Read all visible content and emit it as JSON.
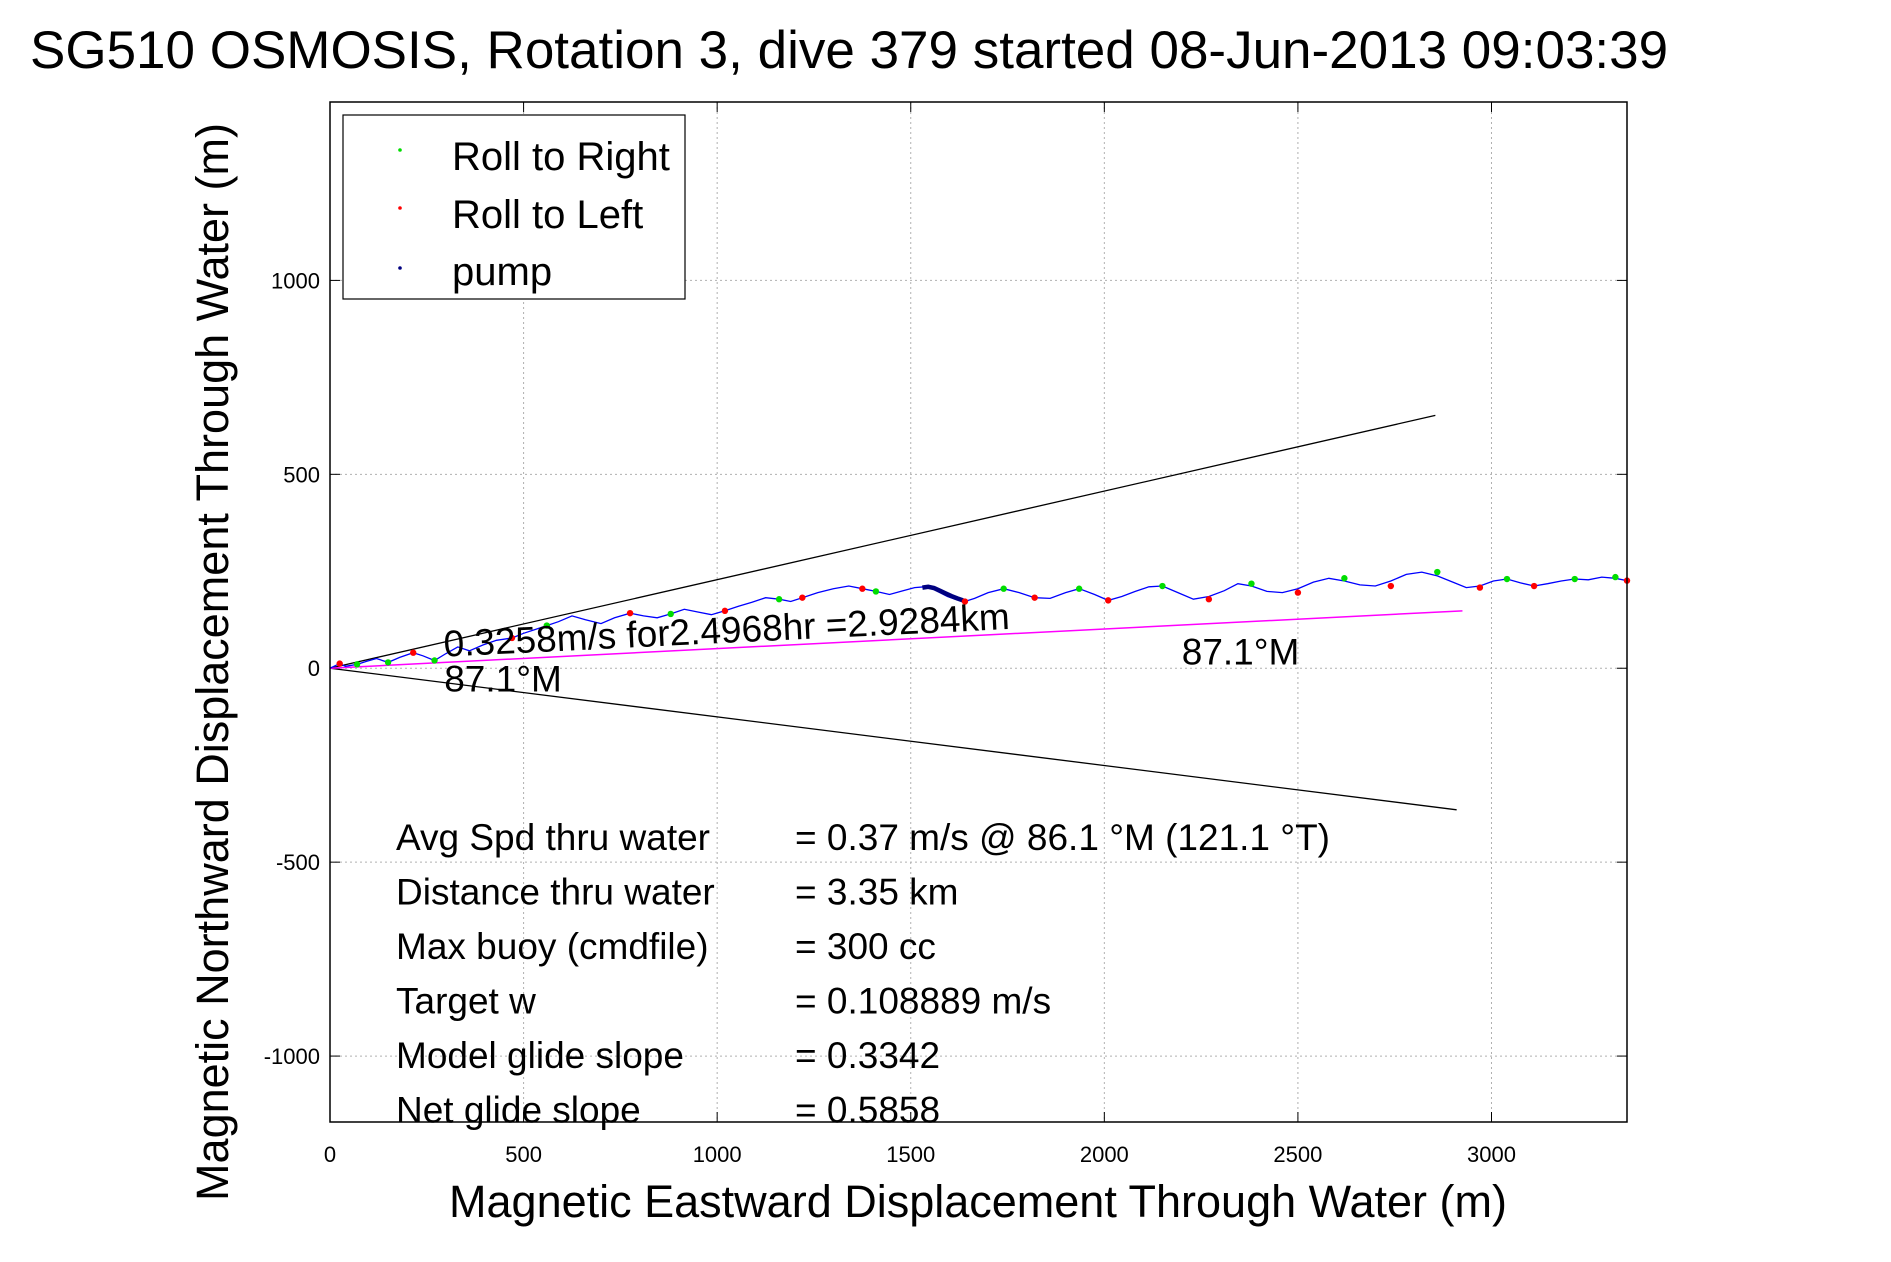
{
  "chart_data": {
    "type": "line",
    "title": "SG510 OSMOSIS, Rotation 3, dive 379 started 08-Jun-2013 09:03:39",
    "xlabel": "Magnetic Eastward Displacement Through Water (m)",
    "ylabel": "Magnetic Northward Displacement Through Water (m)",
    "xlim": [
      0,
      3350
    ],
    "ylim": [
      -1170,
      1460
    ],
    "xticks": [
      0,
      500,
      1000,
      1500,
      2000,
      2500,
      3000
    ],
    "yticks": [
      -1000,
      -500,
      0,
      500,
      1000
    ],
    "xtick_labels": [
      "0",
      "500",
      "1000",
      "1500",
      "2000",
      "2500",
      "3000"
    ],
    "ytick_labels": [
      "-1000",
      "-500",
      "0",
      "500",
      "1000"
    ],
    "grid": true,
    "legend": {
      "placement": "top-left",
      "entries": [
        {
          "label": "Roll to Right",
          "color": "#00dd00"
        },
        {
          "label": "Roll to Left",
          "color": "#ff0000"
        },
        {
          "label": "pump",
          "color": "#000080"
        }
      ]
    },
    "track": {
      "color": "#0000ff",
      "x": [
        0,
        25,
        40,
        70,
        95,
        120,
        150,
        180,
        215,
        240,
        270,
        300,
        330,
        360,
        395,
        430,
        470,
        500,
        530,
        560,
        590,
        625,
        660,
        700,
        735,
        775,
        810,
        845,
        880,
        915,
        950,
        985,
        1020,
        1055,
        1090,
        1125,
        1160,
        1190,
        1220,
        1260,
        1300,
        1340,
        1375,
        1410,
        1445,
        1480,
        1510,
        1535,
        1555,
        1575,
        1595,
        1615,
        1640,
        1665,
        1700,
        1740,
        1780,
        1820,
        1860,
        1900,
        1935,
        1975,
        2010,
        2045,
        2080,
        2115,
        2150,
        2190,
        2230,
        2270,
        2310,
        2345,
        2380,
        2420,
        2460,
        2500,
        2540,
        2580,
        2620,
        2660,
        2700,
        2740,
        2780,
        2820,
        2860,
        2900,
        2935,
        2970,
        3005,
        3040,
        3075,
        3110,
        3145,
        3180,
        3215,
        3250,
        3285,
        3320,
        3350
      ],
      "y": [
        0,
        12,
        5,
        10,
        18,
        25,
        15,
        28,
        40,
        32,
        20,
        38,
        55,
        45,
        60,
        72,
        78,
        90,
        100,
        110,
        120,
        135,
        125,
        115,
        130,
        142,
        135,
        130,
        140,
        152,
        145,
        138,
        148,
        160,
        170,
        182,
        178,
        172,
        182,
        195,
        205,
        212,
        205,
        198,
        190,
        200,
        208,
        210,
        205,
        195,
        185,
        178,
        172,
        180,
        195,
        205,
        195,
        182,
        180,
        195,
        205,
        190,
        175,
        185,
        198,
        210,
        212,
        195,
        178,
        185,
        200,
        218,
        212,
        198,
        195,
        205,
        222,
        232,
        225,
        215,
        212,
        225,
        242,
        248,
        238,
        222,
        208,
        212,
        225,
        230,
        220,
        212,
        218,
        225,
        230,
        228,
        235,
        232,
        226
      ]
    },
    "roll_right_points": {
      "color": "#00dd00",
      "x": [
        70,
        150,
        270,
        560,
        880,
        1160,
        1410,
        1740,
        1935,
        2150,
        2380,
        2620,
        2860,
        3040,
        3215,
        3320
      ],
      "y": [
        10,
        15,
        20,
        110,
        140,
        178,
        198,
        205,
        205,
        212,
        218,
        232,
        248,
        230,
        230,
        235
      ]
    },
    "roll_left_points": {
      "color": "#ff0000",
      "x": [
        25,
        215,
        470,
        775,
        1020,
        1220,
        1375,
        1640,
        1820,
        2010,
        2270,
        2500,
        2740,
        2970,
        3110,
        3350
      ],
      "y": [
        12,
        40,
        78,
        142,
        148,
        182,
        205,
        172,
        182,
        175,
        178,
        195,
        212,
        208,
        212,
        226
      ]
    },
    "pump_segment": {
      "color": "#000080",
      "x": [
        1530,
        1545,
        1560,
        1575,
        1590,
        1605,
        1620,
        1635
      ],
      "y": [
        208,
        210,
        207,
        200,
        193,
        186,
        180,
        175
      ]
    },
    "heading_lines": {
      "color": "#000000",
      "upper": {
        "x": [
          0,
          2855
        ],
        "y": [
          0,
          652
        ]
      },
      "lower": {
        "x": [
          0,
          2910
        ],
        "y": [
          0,
          -365
        ]
      }
    },
    "net_vector": {
      "color": "#ff00ff",
      "x": [
        0,
        2925
      ],
      "y": [
        0,
        148
      ]
    },
    "annotations": {
      "vector_label": {
        "text": "0.3258m/s for2.4968hr =2.9284km",
        "x": 295,
        "y": 30,
        "rotate": -2.8
      },
      "heading_label_1": {
        "text": "87.1°M",
        "x": 295,
        "y": -60
      },
      "heading_label_2": {
        "text": "87.1°M",
        "x": 2200,
        "y": 10
      }
    },
    "stats": [
      {
        "label": "Avg Spd thru water",
        "value": "=  0.37 m/s @  86.1 °M (121.1 °T)"
      },
      {
        "label": "Distance thru water",
        "value": "=  3.35 km"
      },
      {
        "label": "Max buoy (cmdfile)",
        "value": "= 300 cc"
      },
      {
        "label": "Target w",
        "value": "= 0.108889 m/s"
      },
      {
        "label": "Model glide slope",
        "value": "= 0.3342"
      },
      {
        "label": "Net glide slope",
        "value": "= 0.5858"
      }
    ]
  }
}
